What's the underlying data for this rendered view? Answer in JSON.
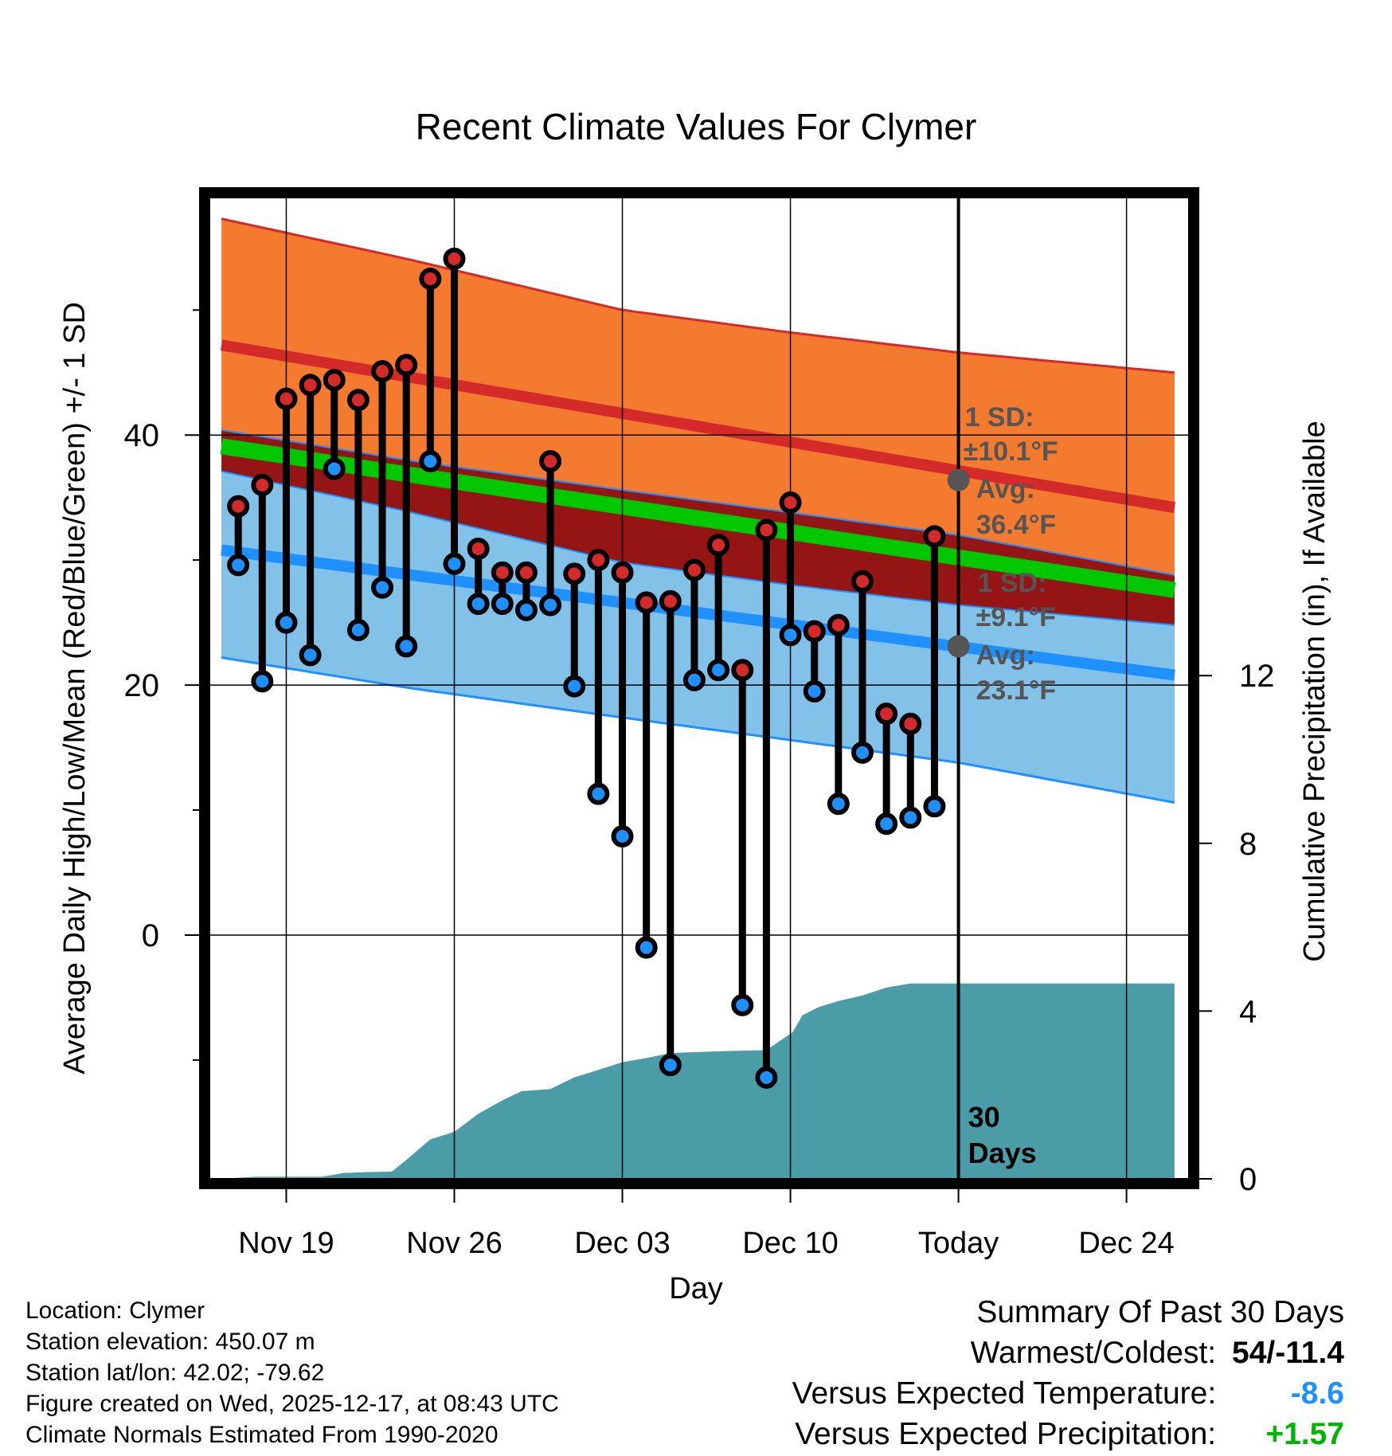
{
  "colors": {
    "high_band": "#f47a30",
    "high_line": "#d42a2a",
    "mean_band": "#951414",
    "mean_line": "#00c800",
    "low_band": "#82c1e8",
    "low_line": "#1e90ff",
    "precip": "#4a9ca6",
    "high_marker": "#d42a2a",
    "low_marker": "#1e90ff",
    "warm_value": "#000000",
    "temp_anomaly": "#1e90ff",
    "precip_anomaly": "#00b400"
  },
  "chart_data": {
    "type": "line",
    "title": "Recent Climate Values For Clymer",
    "xlabel": "Day",
    "ylabel": "Average Daily High/Low/Mean (Red/Blue/Green) +/- 1 SD",
    "y2label": "Cumulative Precipitation (in), If Available",
    "xlim": [
      -3.2,
      37.6
    ],
    "ylim": [
      -19.5,
      59
    ],
    "y2lim": [
      0,
      23.4
    ],
    "x_ticks": [
      {
        "day": 0,
        "label": "Nov 19"
      },
      {
        "day": 7,
        "label": "Nov 26"
      },
      {
        "day": 14,
        "label": "Dec 03"
      },
      {
        "day": 21,
        "label": "Dec 10"
      },
      {
        "day": 28,
        "label": "Today"
      },
      {
        "day": 35,
        "label": "Dec 24"
      }
    ],
    "y_ticks": [
      0,
      20,
      40
    ],
    "y_minor_ticks": [
      -10,
      10,
      30,
      50
    ],
    "y2_ticks": [
      0,
      4,
      8,
      12
    ],
    "today_day": 28,
    "normals": {
      "x_start": -2.7,
      "x_end": 37.0,
      "high_avg_start": 47.2,
      "high_avg_end": 34.2,
      "low_avg_start": 30.8,
      "low_avg_end": 20.8,
      "mean_avg_start": 39.1,
      "mean_avg_end": 27.6,
      "high_sd": 10.1,
      "low_sd": 9.1,
      "curve_dates": [
        -2.7,
        5,
        14,
        21,
        28,
        37
      ],
      "high_upper": [
        57.3,
        54.1,
        50.0,
        48.2,
        46.6,
        45.0
      ],
      "low_lower": [
        22.2,
        19.8,
        17.4,
        15.6,
        13.8,
        10.6
      ]
    },
    "annotations": {
      "high_sd_label": "1 SD:",
      "high_sd_value": "±10.1°F",
      "high_avg_label": "Avg:",
      "high_avg_value": "36.4°F",
      "low_sd_label": "1 SD:",
      "low_sd_value": "±9.1°F",
      "low_avg_label": "Avg:",
      "low_avg_value": "23.1°F",
      "high_avg_marker": 36.4,
      "low_avg_marker": 23.1,
      "days_number": "30",
      "days_word": "Days"
    },
    "series": [
      {
        "name": "Daily High",
        "days": [
          -2,
          -1,
          0,
          1,
          2,
          3,
          4,
          5,
          6,
          7,
          8,
          9,
          10,
          11,
          12,
          13,
          14,
          15,
          16,
          17,
          18,
          19,
          20,
          21,
          22,
          23,
          24,
          25,
          26,
          27
        ],
        "values": [
          34.3,
          36.0,
          42.9,
          44.0,
          44.4,
          42.8,
          45.1,
          45.6,
          52.5,
          54.1,
          30.9,
          29.0,
          29.0,
          37.9,
          28.9,
          30.0,
          29.0,
          26.6,
          26.7,
          29.2,
          31.2,
          21.2,
          32.4,
          34.6,
          24.3,
          24.8,
          28.3,
          17.7,
          16.9,
          31.9
        ]
      },
      {
        "name": "Daily Low",
        "days": [
          -2,
          -1,
          0,
          1,
          2,
          3,
          4,
          5,
          6,
          7,
          8,
          9,
          10,
          11,
          12,
          13,
          14,
          15,
          16,
          17,
          18,
          19,
          20,
          21,
          22,
          23,
          24,
          25,
          26,
          27
        ],
        "values": [
          29.6,
          20.3,
          25.0,
          22.4,
          37.3,
          24.4,
          27.8,
          23.1,
          37.9,
          29.7,
          26.5,
          26.5,
          26.0,
          26.4,
          19.9,
          11.3,
          7.9,
          -1.0,
          -10.4,
          20.4,
          21.2,
          -5.6,
          -11.4,
          24.0,
          19.5,
          10.5,
          14.6,
          8.9,
          9.4,
          10.3
        ]
      },
      {
        "name": "Cumulative Precipitation",
        "days": [
          -2.7,
          -1.3,
          1.5,
          2.4,
          3.3,
          4.4,
          5.0,
          6.0,
          7.0,
          8.0,
          9.0,
          9.8,
          11.0,
          12.0,
          12.9,
          14.0,
          15.0,
          16.0,
          17.0,
          18.0,
          20.0,
          21.1,
          21.5,
          22.2,
          23.0,
          24.0,
          25.0,
          26.0,
          37.0
        ],
        "values": [
          0.0,
          0.05,
          0.05,
          0.14,
          0.16,
          0.17,
          0.45,
          0.94,
          1.12,
          1.55,
          1.87,
          2.09,
          2.14,
          2.42,
          2.58,
          2.78,
          2.88,
          3.0,
          3.02,
          3.04,
          3.07,
          3.5,
          3.9,
          4.1,
          4.24,
          4.37,
          4.56,
          4.66,
          4.66
        ]
      }
    ]
  },
  "footer": {
    "location": "Location: Clymer",
    "elevation": "Station elevation: 450.07 m",
    "latlon": "Station lat/lon: 42.02; -79.62",
    "created": "Figure created on Wed, 2025-12-17, at 08:43 UTC",
    "normals": "Climate Normals Estimated From 1990-2020"
  },
  "summary": {
    "title": "Summary Of Past 30 Days",
    "warmest_label": "Warmest/Coldest:",
    "warmest_value": "54/-11.4",
    "temp_label": "Versus Expected Temperature:",
    "temp_value": "-8.6",
    "precip_label": "Versus Expected Precipitation:",
    "precip_value": "+1.57"
  }
}
